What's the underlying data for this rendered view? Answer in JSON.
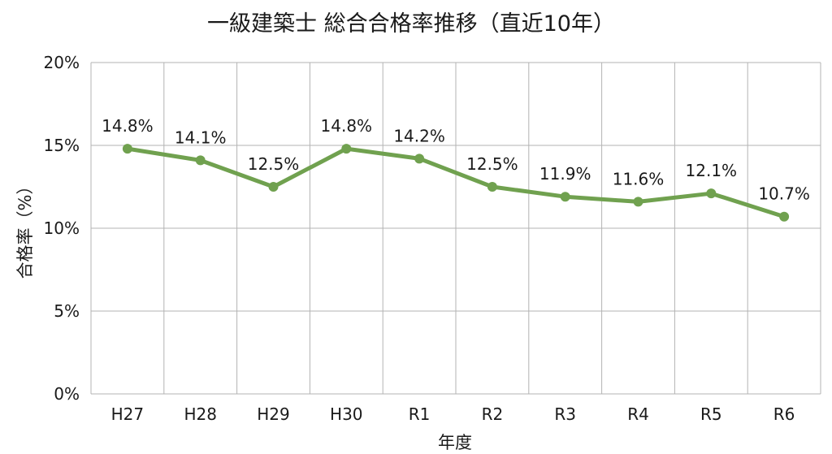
{
  "chart_data": {
    "type": "line",
    "title": "一級建築士 総合合格率推移（直近10年）",
    "xlabel": "年度",
    "ylabel": "合格率（%）",
    "categories": [
      "H27",
      "H28",
      "H29",
      "H30",
      "R1",
      "R2",
      "R3",
      "R4",
      "R5",
      "R6"
    ],
    "series": [
      {
        "values": [
          14.8,
          14.1,
          12.5,
          14.8,
          14.2,
          12.5,
          11.9,
          11.6,
          12.1,
          10.7
        ],
        "labels": [
          "14.8%",
          "14.1%",
          "12.5%",
          "14.8%",
          "14.2%",
          "12.5%",
          "11.9%",
          "11.6%",
          "12.1%",
          "10.7%"
        ]
      }
    ],
    "ylim": [
      0,
      20
    ],
    "yticks": [
      0,
      5,
      10,
      15,
      20
    ],
    "ytick_labels": [
      "0%",
      "5%",
      "10%",
      "15%",
      "20%"
    ],
    "grid": true,
    "legend": "none",
    "line_color": "#70a14f"
  }
}
